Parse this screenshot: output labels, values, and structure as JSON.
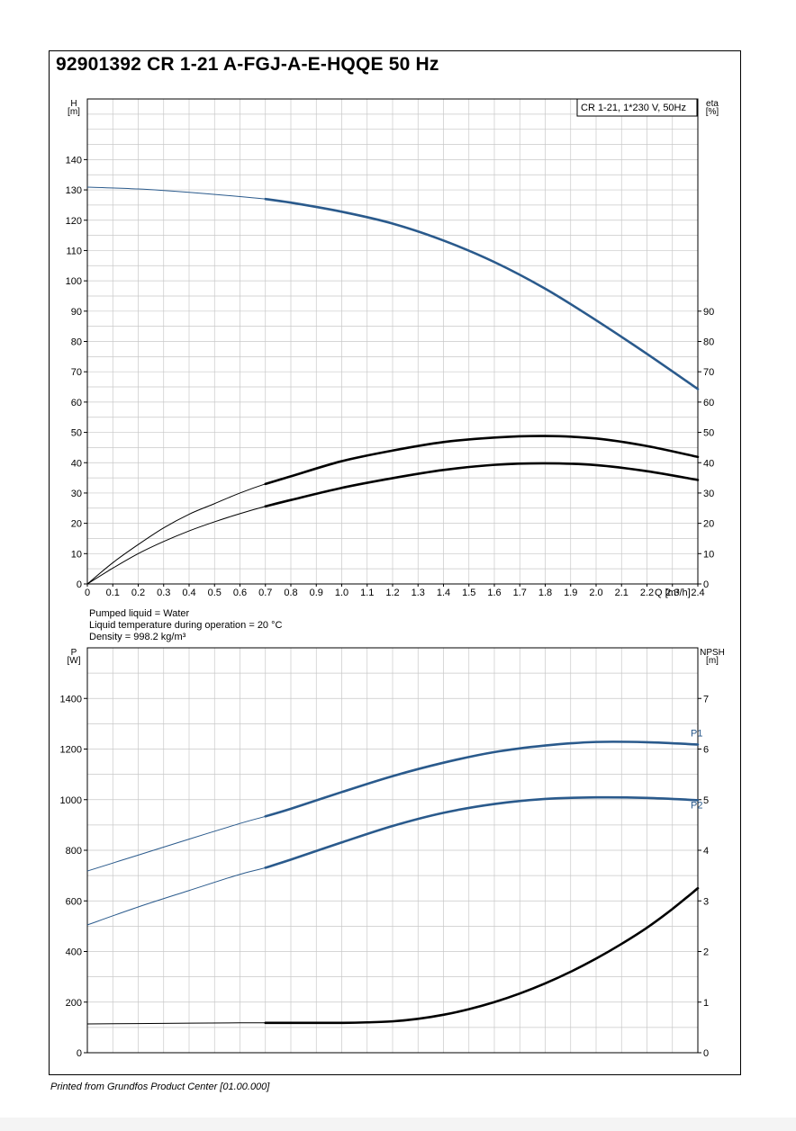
{
  "title": "92901392 CR 1-21 A-FGJ-A-E-HQQE 50 Hz",
  "footer": "Printed from Grundfos Product Center [01.00.000]",
  "colors": {
    "curve_blue": "#2a5a8c",
    "curve_black": "#000000",
    "grid": "#c8c8c8"
  },
  "info_lines": [
    "Pumped liquid = Water",
    "Liquid temperature during operation = 20 °C",
    "Density = 998.2 kg/m³"
  ],
  "chart_data": [
    {
      "type": "line",
      "legend_box": "CR 1-21, 1*230 V, 50Hz",
      "ylabel_left": [
        "H",
        "[m]"
      ],
      "ylabel_right": [
        "eta",
        "[%]"
      ],
      "xlabel": "Q [m³/h]",
      "xlim": [
        0,
        2.4
      ],
      "xticks": [
        "0",
        "0.1",
        "0.2",
        "0.3",
        "0.4",
        "0.5",
        "0.6",
        "0.7",
        "0.8",
        "0.9",
        "1.0",
        "1.1",
        "1.2",
        "1.3",
        "1.4",
        "1.5",
        "1.6",
        "1.7",
        "1.8",
        "1.9",
        "2.0",
        "2.1",
        "2.2",
        "2.3",
        "2.4"
      ],
      "ylim_left": [
        0,
        160
      ],
      "yticks_left": [
        "0",
        "10",
        "20",
        "30",
        "40",
        "50",
        "60",
        "70",
        "80",
        "90",
        "100",
        "110",
        "120",
        "130",
        "140"
      ],
      "ylim_right": [
        0,
        160
      ],
      "yticks_right": [
        "0",
        "10",
        "20",
        "30",
        "40",
        "50",
        "60",
        "70",
        "80",
        "90"
      ],
      "grid": true,
      "series": [
        {
          "color": "#2a5a8c",
          "axis": "left",
          "op_start": 0.7,
          "x": [
            0,
            0.2,
            0.4,
            0.6,
            0.7,
            0.8,
            1.0,
            1.2,
            1.4,
            1.6,
            1.8,
            2.0,
            2.2,
            2.4
          ],
          "y": [
            130.9,
            130.3,
            129.2,
            127.8,
            127.0,
            125.8,
            122.8,
            118.9,
            113.3,
            106.2,
            97.4,
            87.0,
            75.9,
            64.3
          ]
        },
        {
          "color": "#000000",
          "axis": "right",
          "op_start": 0.7,
          "x": [
            0,
            0.1,
            0.2,
            0.3,
            0.4,
            0.5,
            0.6,
            0.7,
            0.8,
            1.0,
            1.2,
            1.4,
            1.6,
            1.8,
            2.0,
            2.2,
            2.4
          ],
          "y": [
            0,
            7,
            13,
            18.5,
            23,
            26.5,
            30,
            33,
            35.5,
            40.5,
            44,
            46.8,
            48.3,
            48.8,
            48,
            45.5,
            41.9
          ]
        },
        {
          "color": "#000000",
          "axis": "right",
          "op_start": 0.7,
          "x": [
            0,
            0.1,
            0.2,
            0.3,
            0.4,
            0.5,
            0.6,
            0.7,
            0.8,
            1.0,
            1.2,
            1.4,
            1.6,
            1.8,
            2.0,
            2.2,
            2.4
          ],
          "y": [
            0,
            5.2,
            10,
            14,
            17.5,
            20.5,
            23.2,
            25.6,
            27.7,
            31.7,
            34.9,
            37.6,
            39.3,
            39.8,
            39.2,
            37.2,
            34.3
          ]
        }
      ]
    },
    {
      "type": "line",
      "ylabel_left": [
        "P",
        "[W]"
      ],
      "ylabel_right": [
        "NPSH",
        "[m]"
      ],
      "xlim": [
        0,
        2.4
      ],
      "ylim_left": [
        0,
        1600
      ],
      "yticks_left": [
        "0",
        "200",
        "400",
        "600",
        "800",
        "1000",
        "1200",
        "1400"
      ],
      "ylim_right": [
        0,
        8
      ],
      "yticks_right": [
        "0",
        "1",
        "2",
        "3",
        "4",
        "5",
        "6",
        "7"
      ],
      "grid": true,
      "series": [
        {
          "name": "P1",
          "color": "#2a5a8c",
          "axis": "left",
          "op_start": 0.7,
          "x": [
            0,
            0.2,
            0.4,
            0.6,
            0.7,
            0.8,
            1.0,
            1.2,
            1.4,
            1.6,
            1.8,
            2.0,
            2.2,
            2.4
          ],
          "y": [
            718,
            781,
            844,
            906,
            934,
            964,
            1030,
            1093,
            1146,
            1188,
            1214,
            1228,
            1227,
            1218
          ]
        },
        {
          "name": "P2",
          "color": "#2a5a8c",
          "axis": "left",
          "op_start": 0.7,
          "x": [
            0,
            0.2,
            0.4,
            0.6,
            0.7,
            0.8,
            1.0,
            1.2,
            1.4,
            1.6,
            1.8,
            2.0,
            2.2,
            2.4
          ],
          "y": [
            505,
            576,
            641,
            705,
            731,
            763,
            831,
            896,
            948,
            983,
            1003,
            1009,
            1007,
            998
          ]
        },
        {
          "color": "#000000",
          "axis": "right",
          "op_start": 0.7,
          "x": [
            0,
            0.3,
            0.6,
            0.7,
            0.9,
            1.0,
            1.1,
            1.2,
            1.3,
            1.4,
            1.5,
            1.6,
            1.7,
            1.8,
            1.9,
            2.0,
            2.1,
            2.2,
            2.3,
            2.4
          ],
          "y": [
            0.57,
            0.58,
            0.59,
            0.59,
            0.59,
            0.59,
            0.6,
            0.62,
            0.67,
            0.75,
            0.86,
            1.0,
            1.17,
            1.37,
            1.6,
            1.86,
            2.15,
            2.47,
            2.84,
            3.25
          ]
        }
      ]
    }
  ]
}
